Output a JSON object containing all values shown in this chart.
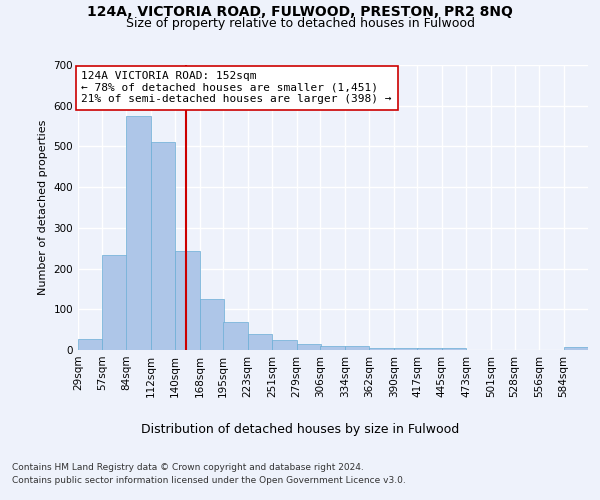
{
  "title1": "124A, VICTORIA ROAD, FULWOOD, PRESTON, PR2 8NQ",
  "title2": "Size of property relative to detached houses in Fulwood",
  "xlabel": "Distribution of detached houses by size in Fulwood",
  "ylabel": "Number of detached properties",
  "bins": [
    "29sqm",
    "57sqm",
    "84sqm",
    "112sqm",
    "140sqm",
    "168sqm",
    "195sqm",
    "223sqm",
    "251sqm",
    "279sqm",
    "306sqm",
    "334sqm",
    "362sqm",
    "390sqm",
    "417sqm",
    "445sqm",
    "473sqm",
    "501sqm",
    "528sqm",
    "556sqm",
    "584sqm"
  ],
  "bin_edges": [
    29,
    57,
    84,
    112,
    140,
    168,
    195,
    223,
    251,
    279,
    306,
    334,
    362,
    390,
    417,
    445,
    473,
    501,
    528,
    556,
    584
  ],
  "values": [
    27,
    233,
    575,
    510,
    244,
    125,
    70,
    40,
    25,
    15,
    10,
    10,
    5,
    5,
    5,
    5,
    0,
    0,
    0,
    0,
    8
  ],
  "bar_color": "#aec6e8",
  "bar_edgecolor": "#6aaed6",
  "vline_x": 152,
  "vline_color": "#cc0000",
  "annotation_line1": "124A VICTORIA ROAD: 152sqm",
  "annotation_line2": "← 78% of detached houses are smaller (1,451)",
  "annotation_line3": "21% of semi-detached houses are larger (398) →",
  "annotation_box_color": "#ffffff",
  "annotation_box_edgecolor": "#cc0000",
  "ylim": [
    0,
    700
  ],
  "yticks": [
    0,
    100,
    200,
    300,
    400,
    500,
    600,
    700
  ],
  "background_color": "#eef2fb",
  "plot_bg_color": "#eef2fb",
  "grid_color": "#ffffff",
  "footer_line1": "Contains HM Land Registry data © Crown copyright and database right 2024.",
  "footer_line2": "Contains public sector information licensed under the Open Government Licence v3.0.",
  "title1_fontsize": 10,
  "title2_fontsize": 9,
  "xlabel_fontsize": 9,
  "ylabel_fontsize": 8,
  "tick_fontsize": 7.5,
  "annotation_fontsize": 8,
  "footer_fontsize": 6.5
}
